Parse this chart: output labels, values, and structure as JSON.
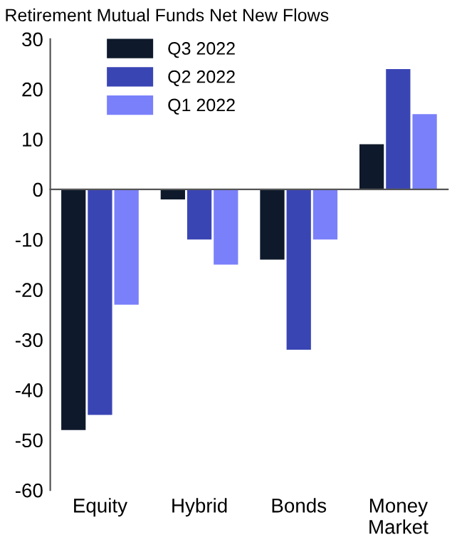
{
  "chart_data": {
    "type": "bar",
    "title": "Retirement Mutual Funds Net New Flows",
    "categories": [
      "Equity",
      "Hybrid",
      "Bonds",
      "Money\nMarket"
    ],
    "series": [
      {
        "name": "Q3 2022",
        "color": "#0e1a2b",
        "values": [
          -48,
          -2,
          -14,
          9
        ]
      },
      {
        "name": "Q2 2022",
        "color": "#3a45b4",
        "values": [
          -45,
          -10,
          -32,
          24
        ]
      },
      {
        "name": "Q1 2022",
        "color": "#7a80fa",
        "values": [
          -23,
          -15,
          -10,
          15
        ]
      }
    ],
    "ylim": [
      -60,
      30
    ],
    "yticks": [
      -60,
      -50,
      -40,
      -30,
      -20,
      -10,
      0,
      10,
      20,
      30
    ],
    "legend": "top left"
  }
}
